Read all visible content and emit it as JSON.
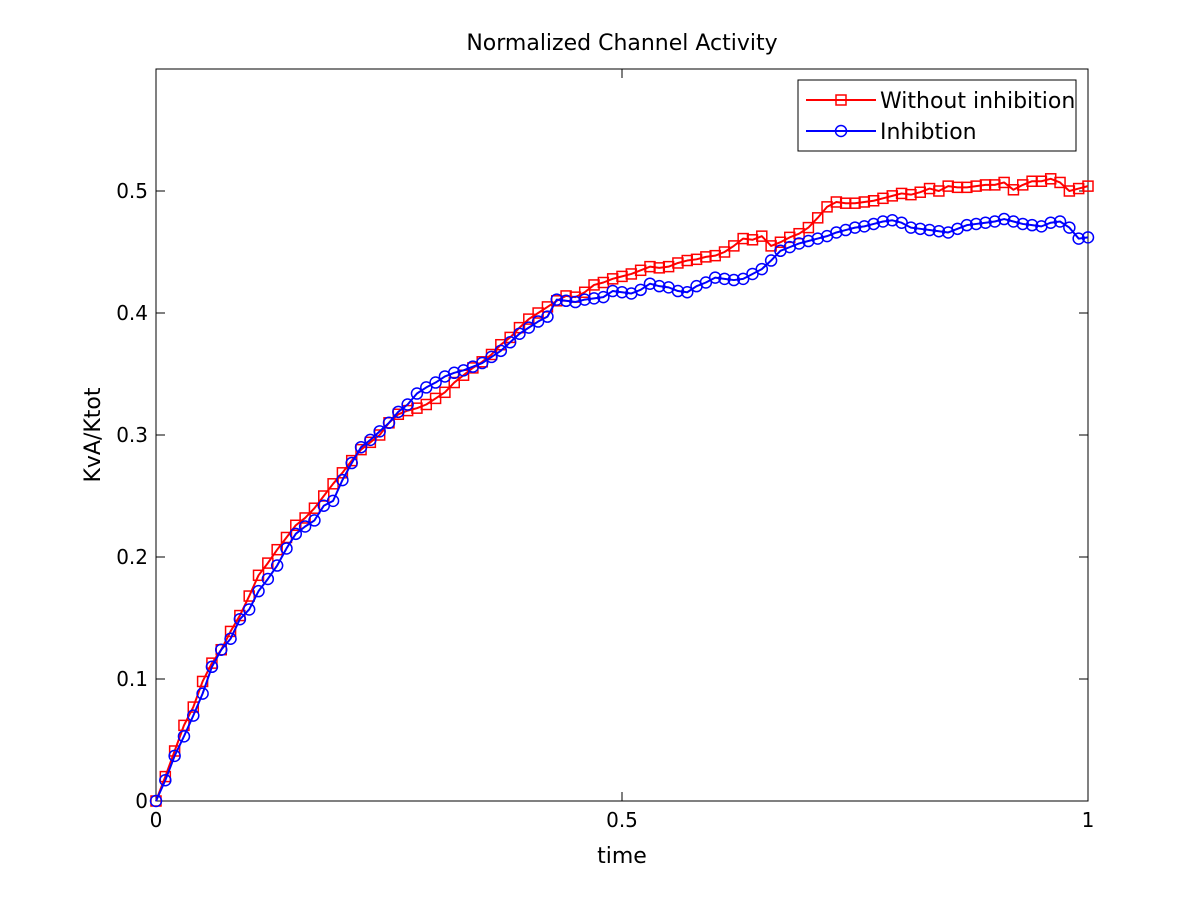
{
  "chart_data": {
    "type": "line",
    "title": "Normalized Channel Activity",
    "xlabel": "time",
    "ylabel": "KvA/Ktot",
    "xlim": [
      0,
      1
    ],
    "ylim": [
      0,
      0.6
    ],
    "xticks": [
      0,
      0.5,
      1
    ],
    "xtick_labels": [
      "0",
      "0.5",
      "1"
    ],
    "yticks": [
      0,
      0.1,
      0.2,
      0.3,
      0.4,
      0.5
    ],
    "ytick_labels": [
      "0",
      "0.1",
      "0.2",
      "0.3",
      "0.4",
      "0.5"
    ],
    "grid": false,
    "legend_position": "top-right",
    "x": [
      0,
      0.01,
      0.02,
      0.03,
      0.04,
      0.05,
      0.06,
      0.07,
      0.08,
      0.09,
      0.1,
      0.11,
      0.12,
      0.13,
      0.14,
      0.15,
      0.16,
      0.17,
      0.18,
      0.19,
      0.2,
      0.21,
      0.22,
      0.23,
      0.24,
      0.25,
      0.26,
      0.27,
      0.28,
      0.29,
      0.3,
      0.31,
      0.32,
      0.33,
      0.34,
      0.35,
      0.36,
      0.37,
      0.38,
      0.39,
      0.4,
      0.41,
      0.42,
      0.43,
      0.44,
      0.45,
      0.46,
      0.47,
      0.48,
      0.49,
      0.5,
      0.51,
      0.52,
      0.53,
      0.54,
      0.55,
      0.56,
      0.57,
      0.58,
      0.59,
      0.6,
      0.61,
      0.62,
      0.63,
      0.64,
      0.65,
      0.66,
      0.67,
      0.68,
      0.69,
      0.7,
      0.71,
      0.72,
      0.73,
      0.74,
      0.75,
      0.76,
      0.77,
      0.78,
      0.79,
      0.8,
      0.81,
      0.82,
      0.83,
      0.84,
      0.85,
      0.86,
      0.87,
      0.88,
      0.89,
      0.9,
      0.91,
      0.92,
      0.93,
      0.94,
      0.95,
      0.96,
      0.97,
      0.98,
      0.99,
      1.0
    ],
    "series": [
      {
        "name": "Without inhibition",
        "color": "#ff0000",
        "marker": "square",
        "values": [
          0,
          0.02,
          0.041,
          0.062,
          0.077,
          0.098,
          0.113,
          0.124,
          0.139,
          0.152,
          0.168,
          0.185,
          0.195,
          0.206,
          0.216,
          0.226,
          0.232,
          0.24,
          0.25,
          0.26,
          0.269,
          0.279,
          0.288,
          0.294,
          0.3,
          0.31,
          0.317,
          0.32,
          0.322,
          0.325,
          0.33,
          0.335,
          0.343,
          0.349,
          0.355,
          0.36,
          0.366,
          0.374,
          0.38,
          0.388,
          0.395,
          0.4,
          0.405,
          0.41,
          0.414,
          0.413,
          0.417,
          0.423,
          0.425,
          0.428,
          0.43,
          0.432,
          0.435,
          0.438,
          0.437,
          0.438,
          0.441,
          0.443,
          0.444,
          0.446,
          0.447,
          0.45,
          0.455,
          0.461,
          0.46,
          0.463,
          0.455,
          0.458,
          0.462,
          0.465,
          0.47,
          0.478,
          0.487,
          0.491,
          0.49,
          0.49,
          0.491,
          0.492,
          0.494,
          0.496,
          0.498,
          0.497,
          0.499,
          0.502,
          0.5,
          0.504,
          0.503,
          0.503,
          0.504,
          0.505,
          0.505,
          0.507,
          0.501,
          0.505,
          0.508,
          0.508,
          0.51,
          0.507,
          0.5,
          0.502,
          0.504
        ]
      },
      {
        "name": "Inhibtion",
        "color": "#0000ff",
        "marker": "circle",
        "values": [
          0,
          0.017,
          0.037,
          0.053,
          0.07,
          0.088,
          0.11,
          0.124,
          0.133,
          0.149,
          0.157,
          0.172,
          0.182,
          0.193,
          0.207,
          0.219,
          0.225,
          0.23,
          0.242,
          0.246,
          0.263,
          0.277,
          0.29,
          0.296,
          0.303,
          0.31,
          0.319,
          0.325,
          0.334,
          0.339,
          0.343,
          0.348,
          0.351,
          0.353,
          0.356,
          0.359,
          0.364,
          0.369,
          0.376,
          0.383,
          0.388,
          0.393,
          0.397,
          0.411,
          0.41,
          0.409,
          0.411,
          0.412,
          0.413,
          0.418,
          0.417,
          0.416,
          0.419,
          0.424,
          0.422,
          0.421,
          0.418,
          0.417,
          0.422,
          0.425,
          0.429,
          0.428,
          0.427,
          0.428,
          0.432,
          0.436,
          0.443,
          0.451,
          0.454,
          0.457,
          0.459,
          0.461,
          0.463,
          0.466,
          0.468,
          0.47,
          0.471,
          0.473,
          0.475,
          0.476,
          0.474,
          0.47,
          0.469,
          0.468,
          0.467,
          0.466,
          0.469,
          0.472,
          0.473,
          0.474,
          0.475,
          0.477,
          0.475,
          0.473,
          0.472,
          0.471,
          0.474,
          0.475,
          0.47,
          0.461,
          0.462
        ]
      }
    ]
  }
}
